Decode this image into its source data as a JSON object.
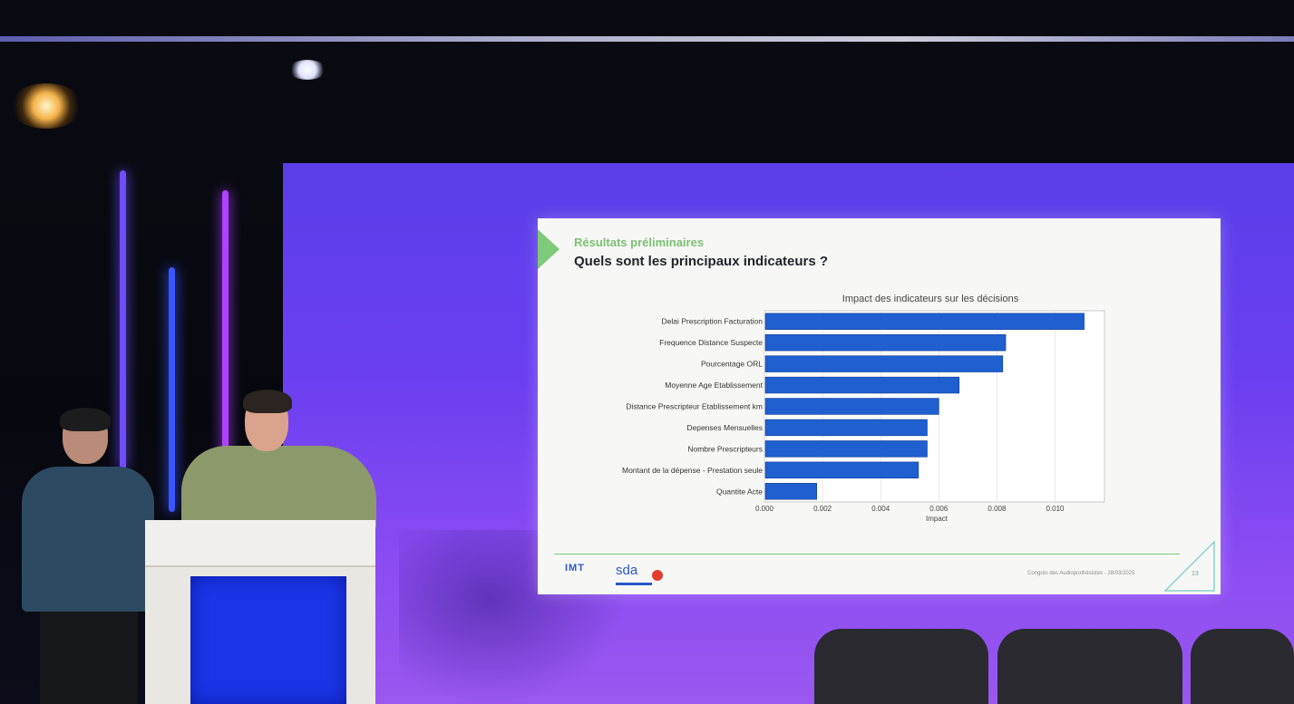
{
  "slide": {
    "section": "Résultats préliminaires",
    "heading": "Quels sont les principaux indicateurs ?",
    "footer_text": "Congrès des Audioprothésistes - 28/03/2025",
    "page_number": "13",
    "logos": {
      "imt": "IMT",
      "sda": "sda"
    }
  },
  "colors": {
    "bar": "#1f5fd0",
    "accent_green": "#7fc97a",
    "backdrop": "#6b3ff0"
  },
  "chart_data": {
    "type": "bar",
    "orientation": "horizontal",
    "title": "Impact des indicateurs sur les décisions",
    "xlabel": "Impact",
    "ylabel": "",
    "categories": [
      "Delai Prescription Facturation",
      "Frequence Distance Suspecte",
      "Pourcentage ORL",
      "Moyenne Age Etablissement",
      "Distance Prescripteur Etablissement km",
      "Depenses Mensuelles",
      "Nombre Prescripteurs",
      "Montant de la dépense - Prestation seule",
      "Quantite Acte"
    ],
    "values": [
      0.011,
      0.0083,
      0.0082,
      0.0067,
      0.006,
      0.0056,
      0.0056,
      0.0053,
      0.0018
    ],
    "xlim": [
      0,
      0.0117
    ],
    "xticks": [
      "0.000",
      "0.002",
      "0.004",
      "0.006",
      "0.008",
      "0.010"
    ],
    "xtick_values": [
      0,
      0.002,
      0.004,
      0.006,
      0.008,
      0.01
    ],
    "grid": true
  }
}
